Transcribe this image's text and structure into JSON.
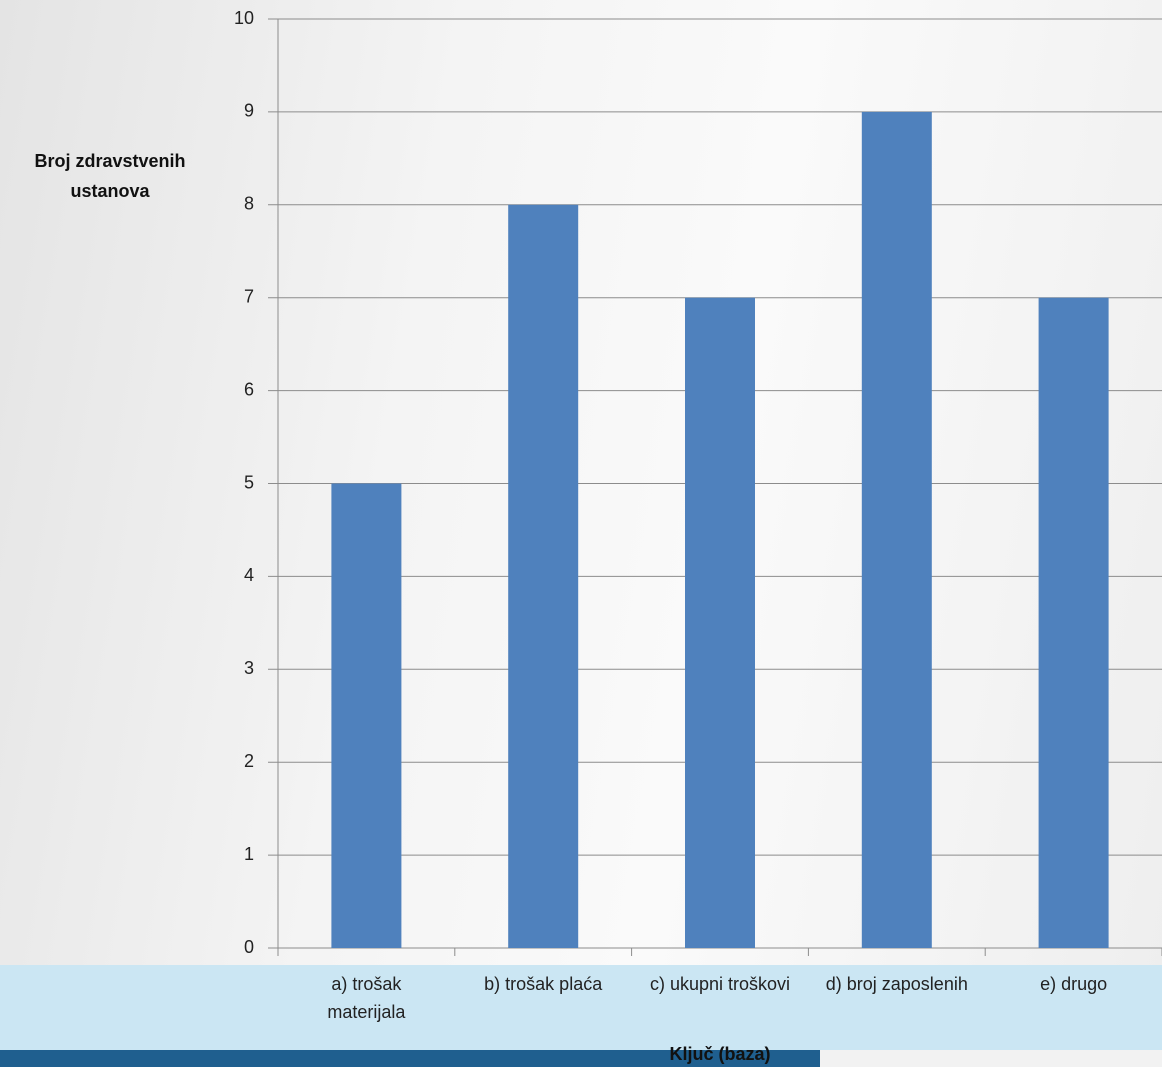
{
  "chart_data": {
    "type": "bar",
    "y_axis_label": "Broj zdravstvenih ustanova",
    "x_axis_label": "Ključ (baza)",
    "categories": [
      "a) trošak materijala",
      "b) trošak plaća",
      "c) ukupni troškovi",
      "d) broj zaposlenih",
      "e) drugo"
    ],
    "values": [
      5,
      8,
      7,
      9,
      7
    ],
    "color": "#4f81bd",
    "ylim": [
      0,
      10
    ],
    "yticks": [
      0,
      1,
      2,
      3,
      4,
      5,
      6,
      7,
      8,
      9,
      10
    ],
    "grid": true
  }
}
